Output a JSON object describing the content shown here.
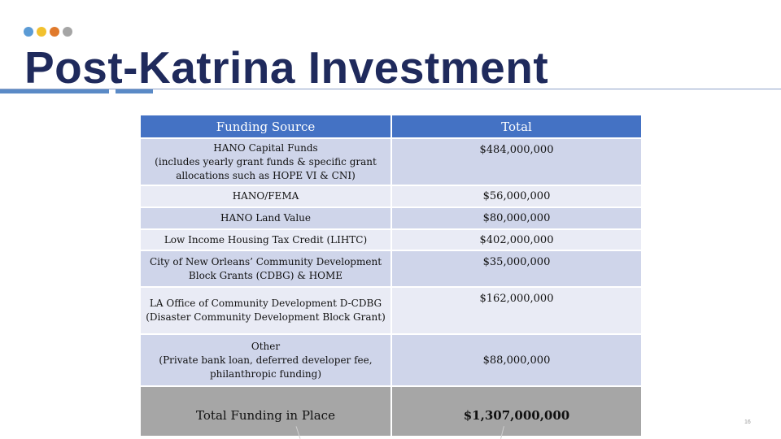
{
  "header": {
    "dots": [
      {
        "name": "blue",
        "color": "#5b9bd5"
      },
      {
        "name": "yellow",
        "color": "#f2c12e"
      },
      {
        "name": "orange",
        "color": "#e07a2c"
      },
      {
        "name": "gray",
        "color": "#a5a5a5"
      }
    ],
    "title": "Post-Katrina Investment"
  },
  "table": {
    "columns": [
      "Funding Source",
      "Total"
    ],
    "rows": [
      {
        "source": "HANO Capital Funds\n(includes yearly grant funds & specific grant allocations such as HOPE VI & CNI)",
        "total": "$484,000,000"
      },
      {
        "source": "HANO/FEMA",
        "total": "$56,000,000"
      },
      {
        "source": "HANO Land Value",
        "total": "$80,000,000"
      },
      {
        "source": "Low Income Housing Tax Credit (LIHTC)",
        "total": "$402,000,000"
      },
      {
        "source": "City of New Orleans’ Community Development Block Grants (CDBG) & HOME",
        "total": "$35,000,000"
      },
      {
        "source": "LA Office of Community Development D-CDBG (Disaster Community Development Block Grant)",
        "total": "$162,000,000"
      },
      {
        "source": "Other\n(Private bank loan, deferred developer fee, philanthropic funding)",
        "total": "$88,000,000"
      }
    ],
    "total_row": {
      "label": "Total Funding in Place",
      "total": "$1,307,000,000"
    }
  },
  "footer": {
    "page_number": "16"
  },
  "colors": {
    "title": "#1f2a5c",
    "header_fill": "#4472c4",
    "row_dark": "#cfd5ea",
    "row_light": "#e9ebf5",
    "total_fill": "#a6a6a6"
  }
}
